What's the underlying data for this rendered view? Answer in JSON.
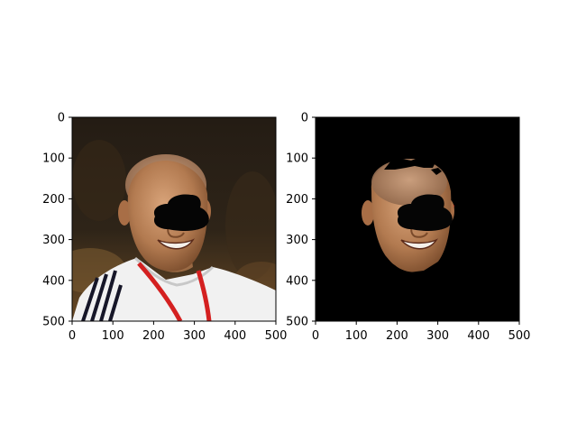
{
  "chart_data": [
    {
      "type": "image",
      "panel": "left",
      "content": "photo: bald man smiling, white sports jersey with dark stripes, red lanyard, dark background; black oval occlusion over eyes",
      "xlim": [
        0,
        500
      ],
      "ylim": [
        500,
        0
      ],
      "x_ticks": [
        0,
        100,
        200,
        300,
        400,
        500
      ],
      "y_ticks": [
        0,
        100,
        200,
        300,
        400,
        500
      ],
      "x_tick_labels": [
        "0",
        "100",
        "200",
        "300",
        "400",
        "500"
      ],
      "y_tick_labels": [
        "0",
        "100",
        "200",
        "300",
        "400",
        "500"
      ]
    },
    {
      "type": "image",
      "panel": "right",
      "content": "segmented face region on black background; black oval occlusion over eyes",
      "xlim": [
        0,
        500
      ],
      "ylim": [
        500,
        0
      ],
      "x_ticks": [
        0,
        100,
        200,
        300,
        400,
        500
      ],
      "y_ticks": [
        0,
        100,
        200,
        300,
        400,
        500
      ],
      "x_tick_labels": [
        "0",
        "100",
        "200",
        "300",
        "400",
        "500"
      ],
      "y_tick_labels": [
        "0",
        "100",
        "200",
        "300",
        "400",
        "500"
      ]
    }
  ],
  "colors": {
    "background": "#ffffff",
    "axis": "#000000",
    "mask_background": "#000000",
    "skin": "#c08a62",
    "skin_shadow": "#8a5a3a",
    "jersey": "#f2f2f2",
    "stripe": "#1a1a2a",
    "lanyard": "#d42020",
    "photo_bg_top": "#2a2218",
    "photo_bg_bottom": "#5a4020"
  }
}
